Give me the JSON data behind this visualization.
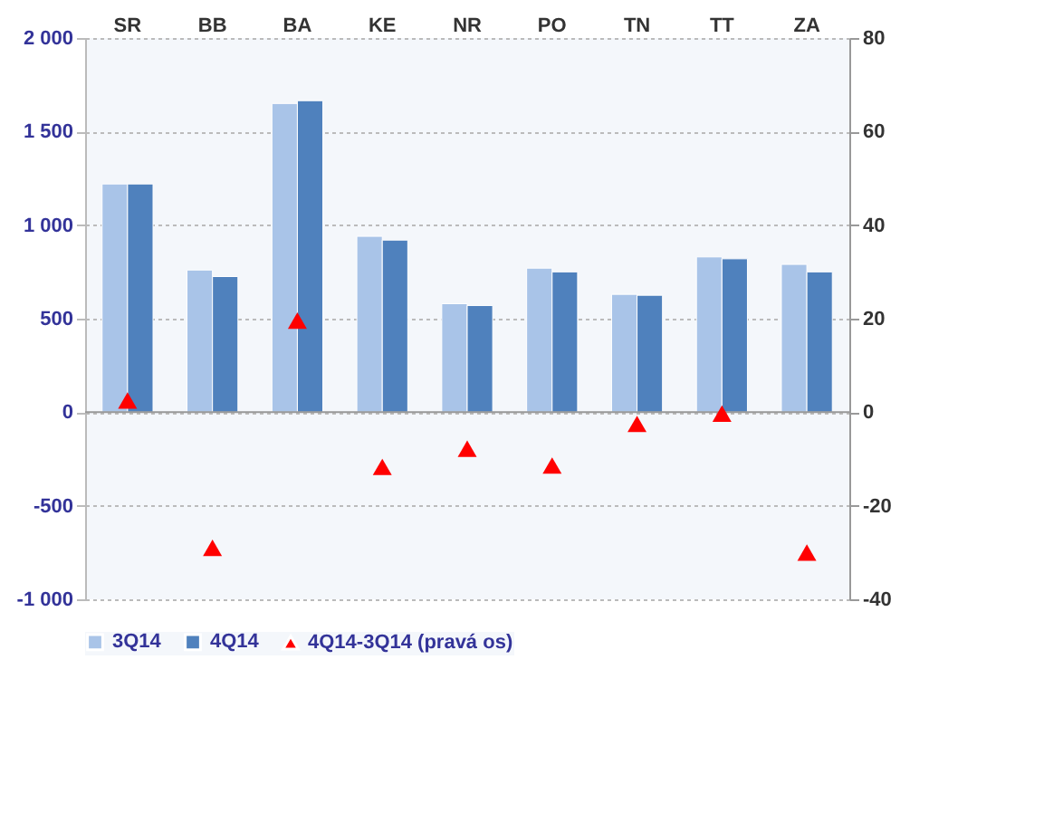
{
  "chart_data": {
    "type": "bar",
    "categories": [
      "SR",
      "BB",
      "BA",
      "KE",
      "NR",
      "PO",
      "TN",
      "TT",
      "ZA"
    ],
    "series": [
      {
        "name": "3Q14",
        "color": "#a9c4e8",
        "values": [
          1220,
          760,
          1650,
          940,
          580,
          770,
          630,
          830,
          790
        ]
      },
      {
        "name": "4Q14",
        "color": "#4f81bd",
        "values": [
          1220,
          725,
          1665,
          920,
          570,
          750,
          625,
          820,
          750
        ]
      },
      {
        "name": "4Q14-3Q14 (pravá os)",
        "color": "#ff0000",
        "type": "scatter",
        "axis": "y2",
        "marker": "triangle",
        "values": [
          2.5,
          -29,
          19.6,
          -11.7,
          -7.8,
          -11.4,
          -2.5,
          -0.3,
          -30
        ]
      }
    ],
    "ylim": [
      -1000,
      2000
    ],
    "yticks": [
      {
        "value": -1000,
        "label": "-1 000"
      },
      -500,
      0,
      500,
      {
        "value": 1000,
        "label": "1 000"
      },
      {
        "value": 1500,
        "label": "1 500"
      },
      {
        "value": 2000,
        "label": "2 000"
      }
    ],
    "y2lim": [
      -40,
      80
    ],
    "y2ticks": [
      -40,
      -20,
      0,
      20,
      40,
      60,
      80
    ],
    "grid": "y",
    "legend": "bottom"
  }
}
